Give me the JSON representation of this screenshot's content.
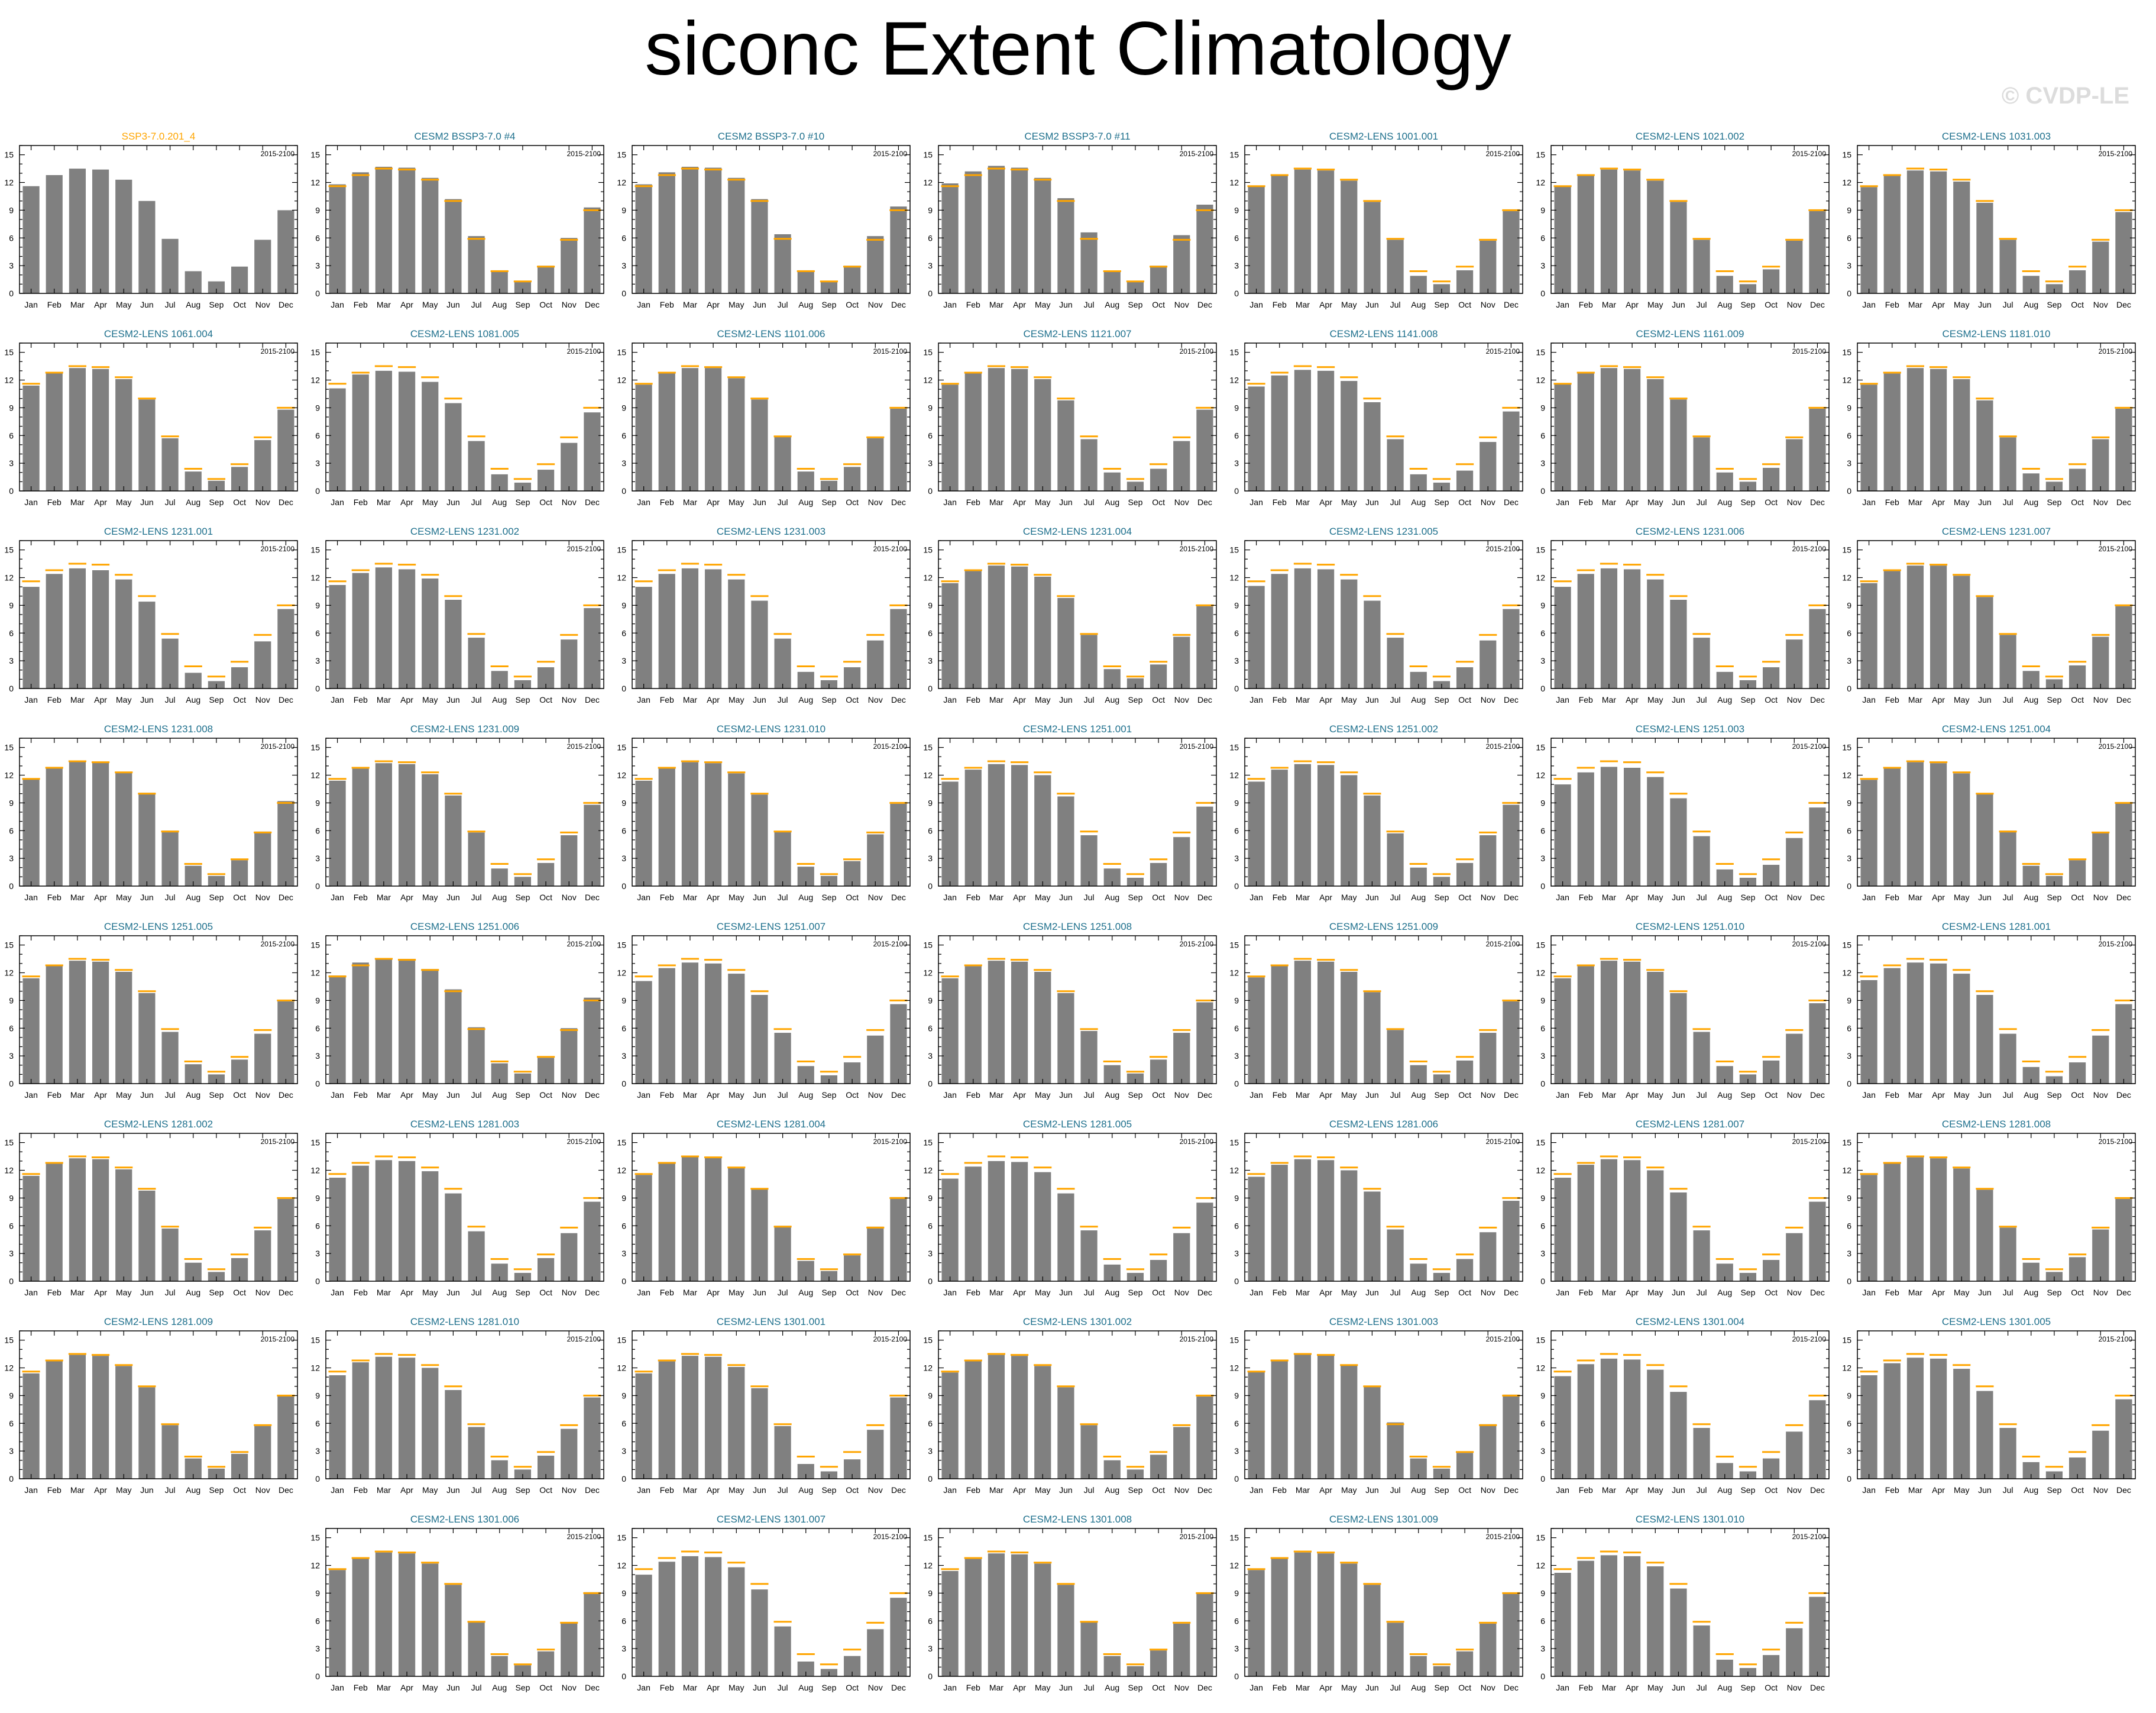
{
  "page": {
    "title": "siconc Extent Climatology",
    "copyright": "© CVDP-LE"
  },
  "colors": {
    "bar": "#808080",
    "obs_line": "#ffa500",
    "obs_title": "#ffa500",
    "model_title": "#1d6f8c",
    "axis": "#000000"
  },
  "chart_data": {
    "type": "bar",
    "months": [
      "Jan",
      "Feb",
      "Mar",
      "Apr",
      "May",
      "Jun",
      "Jul",
      "Aug",
      "Sep",
      "Oct",
      "Nov",
      "Dec"
    ],
    "yticks": [
      0,
      3,
      6,
      9,
      12,
      15
    ],
    "ylim": [
      0,
      16
    ],
    "period": "2015-2100",
    "observation": {
      "name": "SSP3-7.0.201_4",
      "values": [
        11.6,
        12.8,
        13.5,
        13.4,
        12.3,
        10.0,
        5.9,
        2.4,
        1.3,
        2.9,
        5.8,
        9.0
      ]
    },
    "panels": [
      {
        "title": "SSP3-7.0.201_4",
        "is_obs": true,
        "values": [
          11.6,
          12.8,
          13.5,
          13.4,
          12.3,
          10.0,
          5.9,
          2.4,
          1.3,
          2.9,
          5.8,
          9.0
        ]
      },
      {
        "title": "CESM2 BSSP3-7.0 #4",
        "values": [
          11.8,
          13.1,
          13.7,
          13.6,
          12.5,
          10.2,
          6.2,
          2.5,
          1.3,
          3.0,
          6.0,
          9.3
        ]
      },
      {
        "title": "CESM2 BSSP3-7.0 #10",
        "values": [
          11.8,
          13.1,
          13.7,
          13.6,
          12.5,
          10.2,
          6.4,
          2.5,
          1.3,
          3.0,
          6.2,
          9.4
        ]
      },
      {
        "title": "CESM2 BSSP3-7.0 #11",
        "values": [
          11.9,
          13.2,
          13.8,
          13.6,
          12.5,
          10.3,
          6.6,
          2.4,
          1.3,
          3.0,
          6.3,
          9.6
        ]
      },
      {
        "title": "CESM2-LENS 1001.001",
        "values": [
          11.6,
          12.8,
          13.4,
          13.3,
          12.2,
          9.9,
          5.8,
          1.9,
          1.0,
          2.5,
          5.7,
          8.9
        ]
      },
      {
        "title": "CESM2-LENS 1021.002",
        "values": [
          11.6,
          12.8,
          13.4,
          13.3,
          12.2,
          9.9,
          5.8,
          1.9,
          1.0,
          2.6,
          5.7,
          8.9
        ]
      },
      {
        "title": "CESM2-LENS 1031.003",
        "values": [
          11.5,
          12.7,
          13.3,
          13.2,
          12.1,
          9.8,
          5.8,
          1.9,
          1.0,
          2.5,
          5.6,
          8.8
        ]
      },
      {
        "title": "CESM2-LENS 1061.004",
        "values": [
          11.4,
          12.8,
          13.3,
          13.2,
          12.1,
          9.9,
          5.7,
          2.1,
          1.1,
          2.6,
          5.5,
          8.8
        ]
      },
      {
        "title": "CESM2-LENS 1081.005",
        "values": [
          11.1,
          12.6,
          13.0,
          12.9,
          11.8,
          9.5,
          5.4,
          1.8,
          0.9,
          2.3,
          5.2,
          8.5
        ]
      },
      {
        "title": "CESM2-LENS 1101.006",
        "values": [
          11.5,
          12.8,
          13.3,
          13.3,
          12.2,
          9.9,
          5.9,
          2.1,
          1.1,
          2.6,
          5.7,
          8.9
        ]
      },
      {
        "title": "CESM2-LENS 1121.007",
        "values": [
          11.5,
          12.8,
          13.3,
          13.2,
          12.1,
          9.8,
          5.6,
          2.0,
          1.0,
          2.4,
          5.4,
          8.8
        ]
      },
      {
        "title": "CESM2-LENS 1141.008",
        "values": [
          11.3,
          12.5,
          13.1,
          13.0,
          11.9,
          9.6,
          5.6,
          1.8,
          0.9,
          2.2,
          5.3,
          8.6
        ]
      },
      {
        "title": "CESM2-LENS 1161.009",
        "values": [
          11.6,
          12.8,
          13.3,
          13.2,
          12.1,
          9.9,
          5.8,
          2.0,
          1.0,
          2.5,
          5.6,
          8.9
        ]
      },
      {
        "title": "CESM2-LENS 1181.010",
        "values": [
          11.5,
          12.7,
          13.3,
          13.2,
          12.1,
          9.8,
          5.8,
          1.9,
          1.0,
          2.4,
          5.6,
          8.9
        ]
      },
      {
        "title": "CESM2-LENS 1231.001",
        "values": [
          11.0,
          12.4,
          13.0,
          12.8,
          11.8,
          9.4,
          5.4,
          1.7,
          0.8,
          2.3,
          5.1,
          8.6
        ]
      },
      {
        "title": "CESM2-LENS 1231.002",
        "values": [
          11.2,
          12.5,
          13.1,
          12.9,
          11.9,
          9.6,
          5.5,
          1.9,
          0.9,
          2.3,
          5.3,
          8.7
        ]
      },
      {
        "title": "CESM2-LENS 1231.003",
        "values": [
          11.0,
          12.4,
          13.0,
          12.9,
          11.8,
          9.5,
          5.4,
          1.8,
          0.9,
          2.3,
          5.2,
          8.6
        ]
      },
      {
        "title": "CESM2-LENS 1231.004",
        "values": [
          11.4,
          12.7,
          13.3,
          13.2,
          12.1,
          9.8,
          5.8,
          2.1,
          1.1,
          2.6,
          5.6,
          8.9
        ]
      },
      {
        "title": "CESM2-LENS 1231.005",
        "values": [
          11.1,
          12.4,
          13.0,
          12.9,
          11.8,
          9.5,
          5.5,
          1.8,
          0.8,
          2.3,
          5.2,
          8.6
        ]
      },
      {
        "title": "CESM2-LENS 1231.006",
        "values": [
          11.0,
          12.4,
          13.0,
          12.9,
          11.8,
          9.6,
          5.5,
          1.8,
          0.9,
          2.3,
          5.3,
          8.6
        ]
      },
      {
        "title": "CESM2-LENS 1231.007",
        "values": [
          11.4,
          12.7,
          13.3,
          13.3,
          12.2,
          9.9,
          5.8,
          1.9,
          1.0,
          2.5,
          5.6,
          8.9
        ]
      },
      {
        "title": "CESM2-LENS 1231.008",
        "values": [
          11.6,
          12.9,
          13.5,
          13.4,
          12.3,
          10.1,
          6.0,
          2.2,
          1.1,
          2.8,
          5.9,
          9.2
        ]
      },
      {
        "title": "CESM2-LENS 1231.009",
        "values": [
          11.4,
          12.7,
          13.3,
          13.2,
          12.1,
          9.8,
          5.8,
          1.9,
          1.0,
          2.5,
          5.5,
          8.8
        ]
      },
      {
        "title": "CESM2-LENS 1231.010",
        "values": [
          11.4,
          12.8,
          13.4,
          13.3,
          12.2,
          9.9,
          5.9,
          2.1,
          1.1,
          2.7,
          5.6,
          8.9
        ]
      },
      {
        "title": "CESM2-LENS 1251.001",
        "values": [
          11.3,
          12.6,
          13.2,
          13.1,
          12.0,
          9.7,
          5.5,
          1.9,
          0.9,
          2.5,
          5.3,
          8.6
        ]
      },
      {
        "title": "CESM2-LENS 1251.002",
        "values": [
          11.3,
          12.6,
          13.2,
          13.1,
          12.0,
          9.8,
          5.7,
          2.0,
          1.0,
          2.5,
          5.5,
          8.8
        ]
      },
      {
        "title": "CESM2-LENS 1251.003",
        "values": [
          11.0,
          12.3,
          12.9,
          12.8,
          11.8,
          9.5,
          5.4,
          1.8,
          0.9,
          2.3,
          5.2,
          8.5
        ]
      },
      {
        "title": "CESM2-LENS 1251.004",
        "values": [
          11.5,
          12.8,
          13.4,
          13.3,
          12.2,
          10.0,
          6.0,
          2.2,
          1.1,
          2.8,
          5.8,
          9.0
        ]
      },
      {
        "title": "CESM2-LENS 1251.005",
        "values": [
          11.4,
          12.8,
          13.3,
          13.2,
          12.1,
          9.8,
          5.6,
          2.1,
          1.0,
          2.6,
          5.4,
          8.9
        ]
      },
      {
        "title": "CESM2-LENS 1251.006",
        "values": [
          11.7,
          13.1,
          13.6,
          13.5,
          12.4,
          10.2,
          6.1,
          2.2,
          1.1,
          2.8,
          6.0,
          9.3
        ]
      },
      {
        "title": "CESM2-LENS 1251.007",
        "values": [
          11.1,
          12.5,
          13.1,
          13.0,
          11.9,
          9.6,
          5.5,
          1.9,
          0.9,
          2.3,
          5.2,
          8.6
        ]
      },
      {
        "title": "CESM2-LENS 1251.008",
        "values": [
          11.4,
          12.7,
          13.3,
          13.2,
          12.1,
          9.8,
          5.7,
          2.0,
          1.1,
          2.6,
          5.5,
          8.8
        ]
      },
      {
        "title": "CESM2-LENS 1251.009",
        "values": [
          11.5,
          12.8,
          13.3,
          13.2,
          12.1,
          9.9,
          5.8,
          2.0,
          1.0,
          2.5,
          5.5,
          8.9
        ]
      },
      {
        "title": "CESM2-LENS 1251.010",
        "values": [
          11.4,
          12.7,
          13.3,
          13.2,
          12.1,
          9.8,
          5.6,
          1.9,
          1.0,
          2.5,
          5.4,
          8.7
        ]
      },
      {
        "title": "CESM2-LENS 1281.001",
        "values": [
          11.2,
          12.5,
          13.1,
          13.0,
          11.9,
          9.6,
          5.4,
          1.8,
          0.8,
          2.3,
          5.2,
          8.6
        ]
      },
      {
        "title": "CESM2-LENS 1281.002",
        "values": [
          11.4,
          12.7,
          13.3,
          13.2,
          12.1,
          9.8,
          5.7,
          2.0,
          1.0,
          2.5,
          5.5,
          8.9
        ]
      },
      {
        "title": "CESM2-LENS 1281.003",
        "values": [
          11.2,
          12.5,
          13.1,
          13.0,
          11.9,
          9.5,
          5.4,
          1.9,
          0.9,
          2.5,
          5.2,
          8.6
        ]
      },
      {
        "title": "CESM2-LENS 1281.004",
        "values": [
          11.5,
          12.9,
          13.5,
          13.4,
          12.3,
          10.0,
          6.0,
          2.2,
          1.1,
          2.8,
          5.9,
          9.1
        ]
      },
      {
        "title": "CESM2-LENS 1281.005",
        "values": [
          11.1,
          12.4,
          13.0,
          12.9,
          11.8,
          9.5,
          5.5,
          1.8,
          0.9,
          2.3,
          5.2,
          8.5
        ]
      },
      {
        "title": "CESM2-LENS 1281.006",
        "values": [
          11.3,
          12.6,
          13.2,
          13.1,
          12.0,
          9.7,
          5.6,
          1.9,
          0.9,
          2.4,
          5.3,
          8.7
        ]
      },
      {
        "title": "CESM2-LENS 1281.007",
        "values": [
          11.2,
          12.6,
          13.2,
          13.1,
          12.0,
          9.6,
          5.5,
          1.9,
          0.9,
          2.3,
          5.2,
          8.6
        ]
      },
      {
        "title": "CESM2-LENS 1281.008",
        "values": [
          11.5,
          12.8,
          13.4,
          13.3,
          12.2,
          9.9,
          5.8,
          2.0,
          1.0,
          2.6,
          5.6,
          8.9
        ]
      },
      {
        "title": "CESM2-LENS 1281.009",
        "values": [
          11.4,
          12.8,
          13.4,
          13.3,
          12.2,
          9.9,
          5.8,
          2.2,
          1.1,
          2.7,
          5.7,
          9.0
        ]
      },
      {
        "title": "CESM2-LENS 1281.010",
        "values": [
          11.2,
          12.6,
          13.2,
          13.1,
          12.0,
          9.6,
          5.6,
          2.0,
          1.0,
          2.5,
          5.4,
          8.8
        ]
      },
      {
        "title": "CESM2-LENS 1301.001",
        "values": [
          11.4,
          12.7,
          13.3,
          13.2,
          12.1,
          9.8,
          5.7,
          1.6,
          0.8,
          2.1,
          5.3,
          8.8
        ]
      },
      {
        "title": "CESM2-LENS 1301.002",
        "values": [
          11.5,
          12.8,
          13.4,
          13.3,
          12.2,
          9.9,
          5.8,
          2.0,
          1.0,
          2.6,
          5.6,
          8.9
        ]
      },
      {
        "title": "CESM2-LENS 1301.003",
        "values": [
          11.6,
          12.9,
          13.5,
          13.4,
          12.3,
          10.0,
          6.1,
          2.2,
          1.1,
          2.8,
          5.9,
          9.1
        ]
      },
      {
        "title": "CESM2-LENS 1301.004",
        "values": [
          11.1,
          12.4,
          13.0,
          12.9,
          11.8,
          9.4,
          5.5,
          1.7,
          0.8,
          2.2,
          5.1,
          8.5
        ]
      },
      {
        "title": "CESM2-LENS 1301.005",
        "values": [
          11.2,
          12.5,
          13.1,
          13.0,
          11.9,
          9.5,
          5.5,
          1.8,
          0.8,
          2.3,
          5.2,
          8.6
        ]
      },
      {
        "title": "CESM2-LENS 1301.006",
        "values": [
          11.5,
          12.8,
          13.4,
          13.3,
          12.2,
          9.9,
          5.9,
          2.2,
          1.2,
          2.7,
          5.8,
          9.1
        ]
      },
      {
        "title": "CESM2-LENS 1301.007",
        "values": [
          11.0,
          12.4,
          13.0,
          12.9,
          11.8,
          9.4,
          5.4,
          1.6,
          0.8,
          2.2,
          5.1,
          8.5
        ]
      },
      {
        "title": "CESM2-LENS 1301.008",
        "values": [
          11.4,
          12.7,
          13.3,
          13.2,
          12.2,
          9.9,
          5.9,
          2.2,
          1.1,
          2.8,
          5.7,
          9.0
        ]
      },
      {
        "title": "CESM2-LENS 1301.009",
        "values": [
          11.5,
          12.8,
          13.4,
          13.3,
          12.2,
          9.9,
          5.8,
          2.2,
          1.1,
          2.7,
          5.7,
          9.0
        ]
      },
      {
        "title": "CESM2-LENS 1301.010",
        "values": [
          11.2,
          12.5,
          13.1,
          13.0,
          11.9,
          9.5,
          5.5,
          1.8,
          0.9,
          2.3,
          5.2,
          8.6
        ]
      }
    ]
  }
}
